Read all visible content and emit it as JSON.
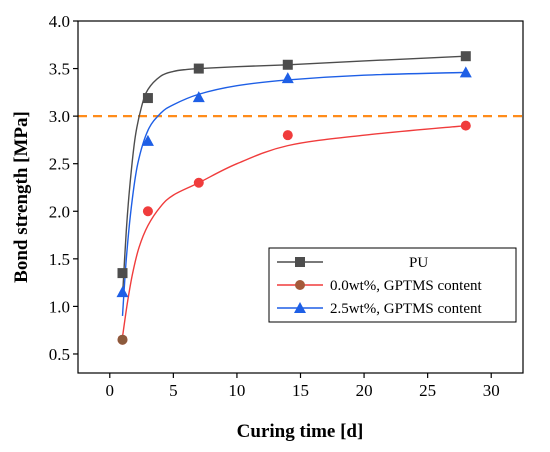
{
  "chart_data": {
    "type": "scatter",
    "xlabel": "Curing time [d]",
    "ylabel": "Bond strength [MPa]",
    "xlim": [
      -2.5,
      32.5
    ],
    "ylim": [
      0.3,
      4.0
    ],
    "xticks": [
      0,
      5,
      10,
      15,
      20,
      25,
      30
    ],
    "yticks": [
      0.5,
      1.0,
      1.5,
      2.0,
      2.5,
      3.0,
      3.5,
      4.0
    ],
    "grid": false,
    "legend_position": "lower-right",
    "reference_line": {
      "y": 3.0,
      "style": "dashed",
      "color": "#ff8c1a"
    },
    "series": [
      {
        "name": "PU",
        "marker": "square",
        "color": "#4d4d4d",
        "x": [
          1,
          3,
          7,
          14,
          28
        ],
        "y": [
          1.35,
          3.19,
          3.5,
          3.54,
          3.63
        ],
        "fit": [
          [
            1.0,
            1.1
          ],
          [
            1.3,
            1.8
          ],
          [
            1.6,
            2.3
          ],
          [
            2.0,
            2.78
          ],
          [
            2.5,
            3.1
          ],
          [
            3.0,
            3.28
          ],
          [
            4.0,
            3.42
          ],
          [
            5.0,
            3.47
          ],
          [
            6.0,
            3.49
          ],
          [
            7.0,
            3.5
          ],
          [
            10.0,
            3.52
          ],
          [
            14.0,
            3.54
          ],
          [
            20.0,
            3.58
          ],
          [
            28.0,
            3.63
          ]
        ]
      },
      {
        "name": "0.0wt%, GPTMS content",
        "marker": "circle",
        "color": "#f03c3c",
        "x": [
          1,
          3,
          7,
          14,
          28
        ],
        "y": [
          0.65,
          2.0,
          2.3,
          2.8,
          2.9
        ],
        "fit": [
          [
            1.0,
            0.68
          ],
          [
            1.4,
            1.05
          ],
          [
            1.8,
            1.35
          ],
          [
            2.3,
            1.62
          ],
          [
            3.0,
            1.85
          ],
          [
            4.0,
            2.05
          ],
          [
            5.0,
            2.17
          ],
          [
            7.0,
            2.3
          ],
          [
            10.0,
            2.5
          ],
          [
            14.0,
            2.69
          ],
          [
            20.0,
            2.8
          ],
          [
            28.0,
            2.9
          ]
        ]
      },
      {
        "name": "2.5wt%, GPTMS content",
        "marker": "triangle",
        "color": "#1e5fe6",
        "x": [
          1,
          3,
          7,
          14,
          28
        ],
        "y": [
          1.15,
          2.74,
          3.2,
          3.4,
          3.46
        ],
        "fit": [
          [
            1.0,
            0.9
          ],
          [
            1.3,
            1.5
          ],
          [
            1.7,
            2.05
          ],
          [
            2.2,
            2.5
          ],
          [
            3.0,
            2.85
          ],
          [
            4.0,
            3.03
          ],
          [
            5.0,
            3.12
          ],
          [
            7.0,
            3.23
          ],
          [
            10.0,
            3.32
          ],
          [
            14.0,
            3.38
          ],
          [
            20.0,
            3.43
          ],
          [
            28.0,
            3.46
          ]
        ]
      }
    ]
  }
}
